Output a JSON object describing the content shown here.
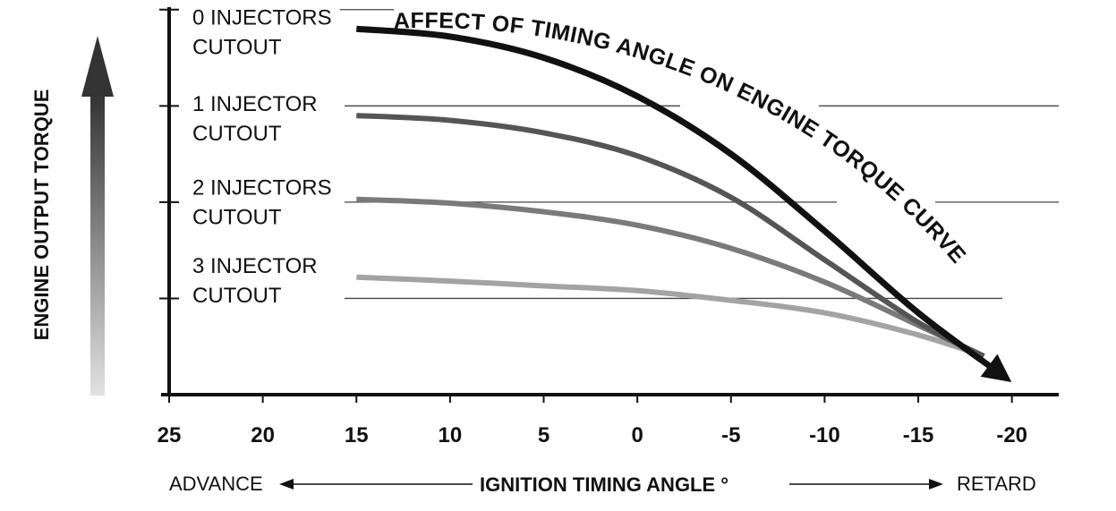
{
  "chart_data": {
    "type": "line",
    "title": "AFFECT OF TIMING ANGLE ON ENGINE TORQUE CURVE",
    "xlabel": "IGNITION TIMING ANGLE °",
    "ylabel": "ENGINE OUTPUT TORQUE",
    "x_left_label": "ADVANCE",
    "x_right_label": "RETARD",
    "x_ticks": [
      25,
      20,
      15,
      10,
      5,
      0,
      -5,
      -10,
      -15,
      -20
    ],
    "x_tick_labels": [
      "25",
      "20",
      "15",
      "10",
      "5",
      "0",
      "-5",
      "-10",
      "-15",
      "-20"
    ],
    "xlim": [
      25,
      -22.5
    ],
    "ylim": [
      0,
      4.1
    ],
    "grid": "horizontal",
    "y_levels": [
      4,
      3,
      2,
      1
    ],
    "series": [
      {
        "name": "0 INJECTORS CUTOUT",
        "label_lines": [
          "0 INJECTORS",
          "CUTOUT"
        ],
        "color": "#111111",
        "emphasis": true,
        "x": [
          15,
          10,
          5,
          0,
          -5,
          -10,
          -15,
          -19.5
        ],
        "y": [
          3.8,
          3.72,
          3.5,
          3.1,
          2.5,
          1.7,
          0.85,
          0.2
        ]
      },
      {
        "name": "1 INJECTOR CUTOUT",
        "label_lines": [
          "1 INJECTOR",
          "CUTOUT"
        ],
        "color": "#555555",
        "emphasis": false,
        "x": [
          15,
          10,
          5,
          0,
          -5,
          -10,
          -15,
          -18.5
        ],
        "y": [
          2.9,
          2.85,
          2.72,
          2.48,
          2.05,
          1.4,
          0.75,
          0.4
        ]
      },
      {
        "name": "2 INJECTORS CUTOUT",
        "label_lines": [
          "2 INJECTORS",
          "CUTOUT"
        ],
        "color": "#7a7a7a",
        "emphasis": false,
        "x": [
          15,
          10,
          5,
          0,
          -5,
          -10,
          -15,
          -18.5
        ],
        "y": [
          2.03,
          1.99,
          1.9,
          1.76,
          1.52,
          1.17,
          0.72,
          0.4
        ]
      },
      {
        "name": "3 INJECTOR CUTOUT",
        "label_lines": [
          "3 INJECTOR",
          "CUTOUT"
        ],
        "color": "#a3a3a3",
        "emphasis": false,
        "x": [
          15,
          10,
          5,
          0,
          -5,
          -10,
          -15,
          -18.5
        ],
        "y": [
          1.22,
          1.18,
          1.13,
          1.08,
          0.98,
          0.85,
          0.62,
          0.4
        ]
      }
    ]
  }
}
